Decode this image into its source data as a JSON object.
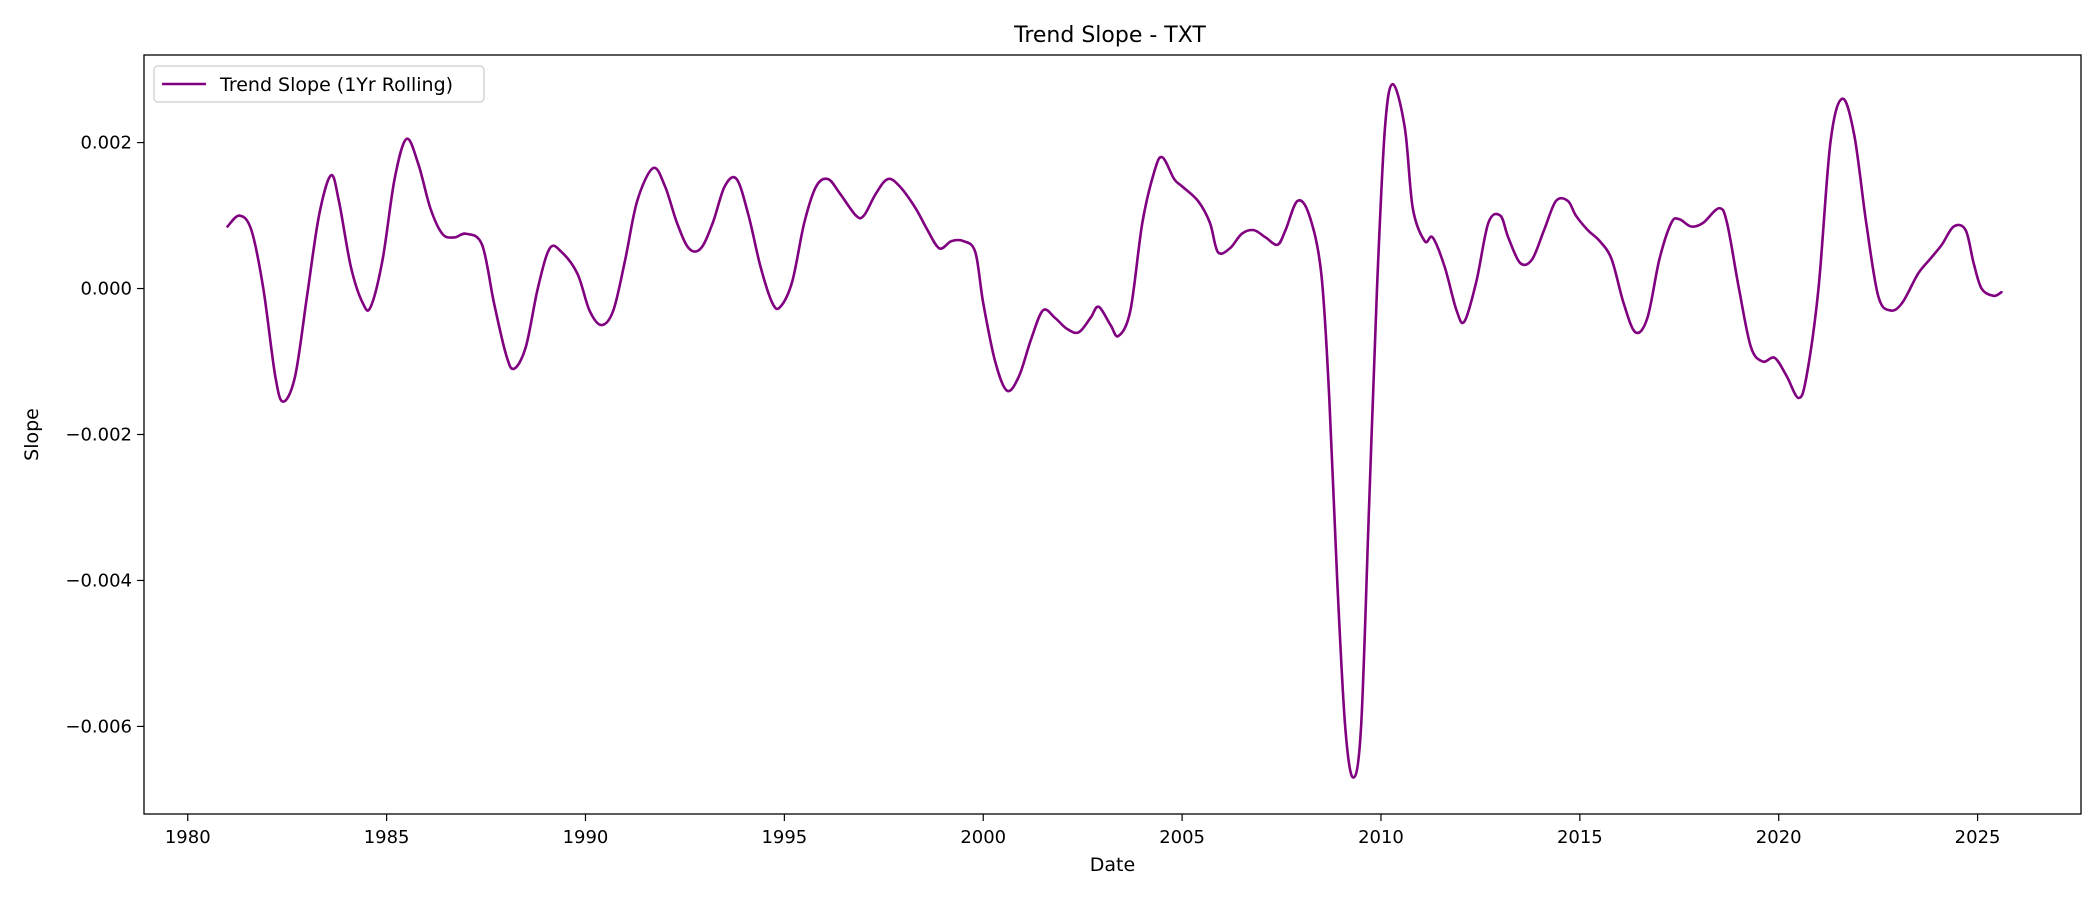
{
  "chart_data": {
    "type": "line",
    "title": "Trend Slope - TXT",
    "xlabel": "Date",
    "ylabel": "Slope",
    "xlim": [
      1978.9,
      2027.6
    ],
    "ylim": [
      -0.0072,
      0.0032
    ],
    "x_ticks": [
      1980,
      1985,
      1990,
      1995,
      2000,
      2005,
      2010,
      2015,
      2020,
      2025
    ],
    "y_ticks": [
      -0.006,
      -0.004,
      -0.002,
      0.0,
      0.002
    ],
    "y_tick_labels": [
      "−0.006",
      "−0.004",
      "−0.002",
      "0.000",
      "0.002"
    ],
    "grid": false,
    "legend_position": "upper-left",
    "series": [
      {
        "name": "Trend Slope (1Yr Rolling)",
        "color": "#800080",
        "points": [
          [
            1981.0,
            0.00085
          ],
          [
            1981.3,
            0.001
          ],
          [
            1981.6,
            0.0008
          ],
          [
            1981.9,
            0.0
          ],
          [
            1982.2,
            -0.0012
          ],
          [
            1982.4,
            -0.00155
          ],
          [
            1982.7,
            -0.0012
          ],
          [
            1983.0,
            -0.0001
          ],
          [
            1983.3,
            0.001
          ],
          [
            1983.6,
            0.00155
          ],
          [
            1983.8,
            0.0012
          ],
          [
            1984.1,
            0.0003
          ],
          [
            1984.4,
            -0.0002
          ],
          [
            1984.6,
            -0.00025
          ],
          [
            1984.9,
            0.0004
          ],
          [
            1985.2,
            0.0015
          ],
          [
            1985.5,
            0.00205
          ],
          [
            1985.8,
            0.0017
          ],
          [
            1986.1,
            0.0011
          ],
          [
            1986.4,
            0.00075
          ],
          [
            1986.7,
            0.0007
          ],
          [
            1987.0,
            0.00075
          ],
          [
            1987.4,
            0.0006
          ],
          [
            1987.7,
            -0.0002
          ],
          [
            1988.0,
            -0.0009
          ],
          [
            1988.2,
            -0.0011
          ],
          [
            1988.5,
            -0.0008
          ],
          [
            1988.8,
            0.0
          ],
          [
            1989.1,
            0.00055
          ],
          [
            1989.4,
            0.0005
          ],
          [
            1989.8,
            0.0002
          ],
          [
            1990.1,
            -0.0003
          ],
          [
            1990.4,
            -0.0005
          ],
          [
            1990.7,
            -0.0003
          ],
          [
            1991.0,
            0.0004
          ],
          [
            1991.3,
            0.0012
          ],
          [
            1991.7,
            0.00165
          ],
          [
            1992.0,
            0.0014
          ],
          [
            1992.3,
            0.0009
          ],
          [
            1992.6,
            0.00055
          ],
          [
            1992.9,
            0.00055
          ],
          [
            1993.2,
            0.0009
          ],
          [
            1993.5,
            0.0014
          ],
          [
            1993.8,
            0.0015
          ],
          [
            1994.1,
            0.001
          ],
          [
            1994.4,
            0.0003
          ],
          [
            1994.7,
            -0.0002
          ],
          [
            1994.9,
            -0.00025
          ],
          [
            1995.2,
            0.0001
          ],
          [
            1995.5,
            0.0009
          ],
          [
            1995.8,
            0.0014
          ],
          [
            1996.1,
            0.0015
          ],
          [
            1996.4,
            0.0013
          ],
          [
            1996.8,
            0.001
          ],
          [
            1997.0,
            0.001
          ],
          [
            1997.3,
            0.0013
          ],
          [
            1997.6,
            0.0015
          ],
          [
            1997.9,
            0.0014
          ],
          [
            1998.3,
            0.0011
          ],
          [
            1998.6,
            0.0008
          ],
          [
            1998.9,
            0.00055
          ],
          [
            1999.2,
            0.00065
          ],
          [
            1999.5,
            0.00065
          ],
          [
            1999.8,
            0.0005
          ],
          [
            2000.0,
            -0.0002
          ],
          [
            2000.3,
            -0.001
          ],
          [
            2000.6,
            -0.0014
          ],
          [
            2000.9,
            -0.0012
          ],
          [
            2001.2,
            -0.0007
          ],
          [
            2001.5,
            -0.0003
          ],
          [
            2001.8,
            -0.0004
          ],
          [
            2002.1,
            -0.00055
          ],
          [
            2002.4,
            -0.0006
          ],
          [
            2002.7,
            -0.0004
          ],
          [
            2002.9,
            -0.00025
          ],
          [
            2003.2,
            -0.0005
          ],
          [
            2003.4,
            -0.00065
          ],
          [
            2003.7,
            -0.0003
          ],
          [
            2004.0,
            0.0009
          ],
          [
            2004.3,
            0.0016
          ],
          [
            2004.5,
            0.0018
          ],
          [
            2004.8,
            0.0015
          ],
          [
            2005.0,
            0.0014
          ],
          [
            2005.4,
            0.0012
          ],
          [
            2005.7,
            0.0009
          ],
          [
            2005.9,
            0.0005
          ],
          [
            2006.2,
            0.00055
          ],
          [
            2006.5,
            0.00075
          ],
          [
            2006.8,
            0.0008
          ],
          [
            2007.1,
            0.0007
          ],
          [
            2007.4,
            0.0006
          ],
          [
            2007.6,
            0.0008
          ],
          [
            2007.9,
            0.0012
          ],
          [
            2008.2,
            0.001
          ],
          [
            2008.5,
            0.0002
          ],
          [
            2008.7,
            -0.0015
          ],
          [
            2008.9,
            -0.004
          ],
          [
            2009.1,
            -0.006
          ],
          [
            2009.3,
            -0.0067
          ],
          [
            2009.5,
            -0.006
          ],
          [
            2009.7,
            -0.003
          ],
          [
            2009.9,
            0.0
          ],
          [
            2010.1,
            0.0022
          ],
          [
            2010.3,
            0.0028
          ],
          [
            2010.6,
            0.0022
          ],
          [
            2010.8,
            0.0011
          ],
          [
            2011.1,
            0.00065
          ],
          [
            2011.3,
            0.0007
          ],
          [
            2011.6,
            0.0003
          ],
          [
            2011.9,
            -0.0003
          ],
          [
            2012.1,
            -0.00045
          ],
          [
            2012.4,
            0.0001
          ],
          [
            2012.7,
            0.0009
          ],
          [
            2013.0,
            0.001
          ],
          [
            2013.2,
            0.0007
          ],
          [
            2013.5,
            0.00035
          ],
          [
            2013.8,
            0.0004
          ],
          [
            2014.1,
            0.0008
          ],
          [
            2014.4,
            0.0012
          ],
          [
            2014.7,
            0.0012
          ],
          [
            2014.9,
            0.001
          ],
          [
            2015.2,
            0.0008
          ],
          [
            2015.5,
            0.00065
          ],
          [
            2015.8,
            0.0004
          ],
          [
            2016.1,
            -0.0002
          ],
          [
            2016.4,
            -0.0006
          ],
          [
            2016.7,
            -0.0004
          ],
          [
            2017.0,
            0.0004
          ],
          [
            2017.3,
            0.0009
          ],
          [
            2017.5,
            0.00095
          ],
          [
            2017.8,
            0.00085
          ],
          [
            2018.1,
            0.0009
          ],
          [
            2018.5,
            0.0011
          ],
          [
            2018.7,
            0.0009
          ],
          [
            2019.0,
            0.0
          ],
          [
            2019.3,
            -0.0008
          ],
          [
            2019.6,
            -0.001
          ],
          [
            2019.9,
            -0.00095
          ],
          [
            2020.2,
            -0.0012
          ],
          [
            2020.5,
            -0.0015
          ],
          [
            2020.7,
            -0.0012
          ],
          [
            2021.0,
            0.0
          ],
          [
            2021.3,
            0.002
          ],
          [
            2021.6,
            0.0026
          ],
          [
            2021.9,
            0.0021
          ],
          [
            2022.2,
            0.0009
          ],
          [
            2022.5,
            -0.0001
          ],
          [
            2022.8,
            -0.0003
          ],
          [
            2023.1,
            -0.0002
          ],
          [
            2023.5,
            0.0002
          ],
          [
            2023.8,
            0.0004
          ],
          [
            2024.1,
            0.0006
          ],
          [
            2024.4,
            0.00085
          ],
          [
            2024.7,
            0.0008
          ],
          [
            2024.9,
            0.00035
          ],
          [
            2025.1,
            0.0
          ],
          [
            2025.4,
            -0.0001
          ],
          [
            2025.6,
            -5e-05
          ]
        ]
      }
    ]
  }
}
